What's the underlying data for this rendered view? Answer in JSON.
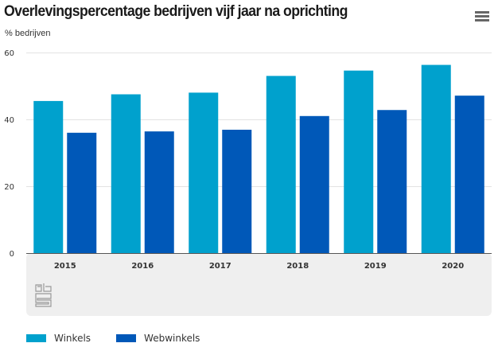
{
  "header": {
    "menu_icon": "hamburger-menu-icon"
  },
  "logo": {
    "icon": "cbs-logo-icon"
  },
  "chart_data": {
    "type": "bar",
    "title": "Overlevingspercentage bedrijven vijf jaar na oprichting",
    "subtitle": "% bedrijven",
    "xlabel": "",
    "ylabel": "% bedrijven",
    "ylim": [
      0,
      60
    ],
    "yticks": [
      0,
      20,
      40,
      60
    ],
    "grid": true,
    "legend_position": "bottom-left",
    "categories": [
      "2015",
      "2016",
      "2017",
      "2018",
      "2019",
      "2020"
    ],
    "series": [
      {
        "name": "Winkels",
        "color": "#00a1cd",
        "values": [
          45.5,
          47.5,
          48.0,
          53.0,
          54.6,
          56.3
        ]
      },
      {
        "name": "Webwinkels",
        "color": "#0058b8",
        "values": [
          36.0,
          36.4,
          36.9,
          41.0,
          42.8,
          47.1
        ]
      }
    ]
  }
}
